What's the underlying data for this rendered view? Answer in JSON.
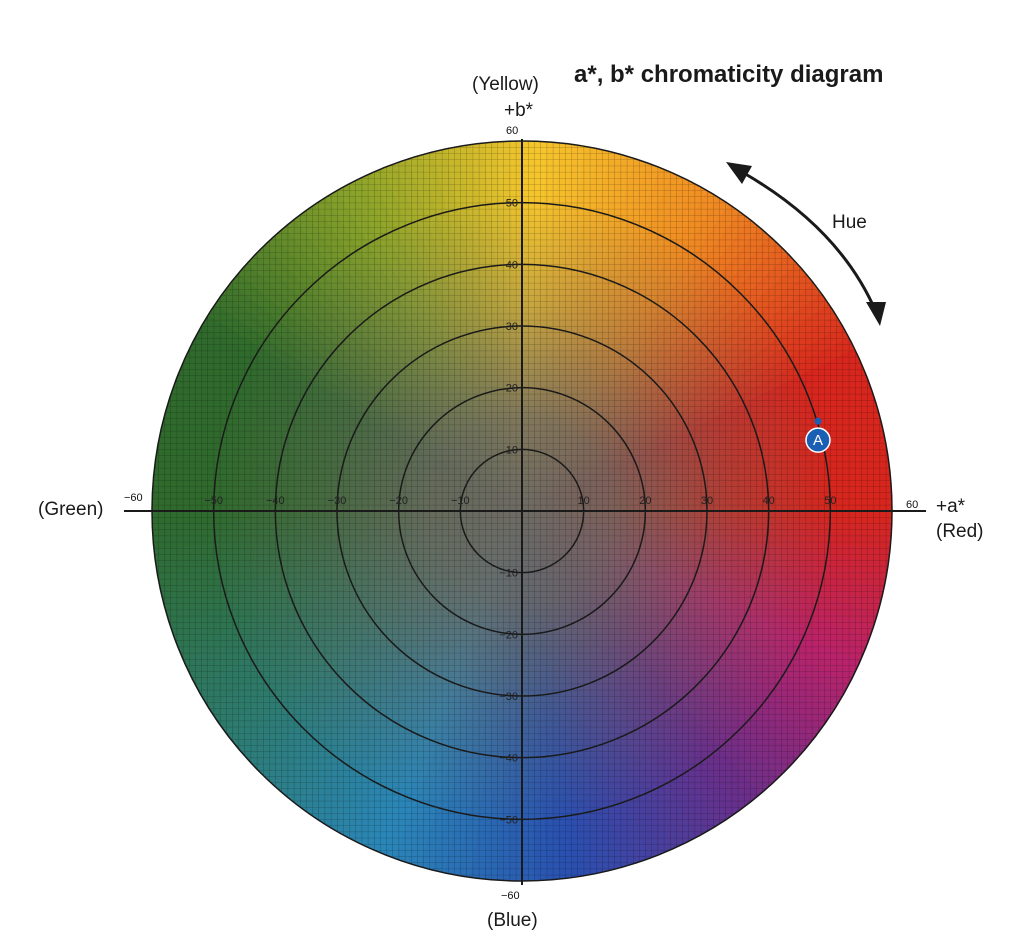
{
  "title": "a*, b* chromaticity diagram",
  "axes": {
    "b_plus": {
      "name": "+b*",
      "color": "(Yellow)"
    },
    "b_minus": {
      "color": "(Blue)"
    },
    "a_plus": {
      "name": "+a*",
      "color": "(Red)"
    },
    "a_minus": {
      "color": "(Green)"
    }
  },
  "ticks": {
    "a_end_neg": "−60",
    "a_end_pos": "60",
    "b_end_pos": "60",
    "b_end_neg": "−60",
    "a_neg": [
      "−50",
      "−40",
      "−30",
      "−20",
      "−10"
    ],
    "a_pos": [
      "10",
      "20",
      "30",
      "40",
      "50"
    ],
    "b_pos": [
      "10",
      "20",
      "30",
      "40",
      "50"
    ],
    "b_neg": [
      "−10",
      "−20",
      "−30",
      "−40",
      "−50"
    ]
  },
  "rings": [
    10,
    20,
    30,
    40,
    50
  ],
  "hue": {
    "label": "Hue"
  },
  "point_a": {
    "label": "A",
    "a": 48,
    "b": 11,
    "color": "#1a5fb4"
  },
  "colors": {
    "yellow": "#f6c62c",
    "orange": "#f08a22",
    "red": "#d7261d",
    "magenta": "#b8236b",
    "purple": "#6a2f8a",
    "blue": "#2a4fb0",
    "cyan": "#2a86b8",
    "teal": "#2e7a6a",
    "green": "#2f6a2c",
    "yellow_green": "#8aa32a",
    "neutral": "#6d6a63"
  }
}
